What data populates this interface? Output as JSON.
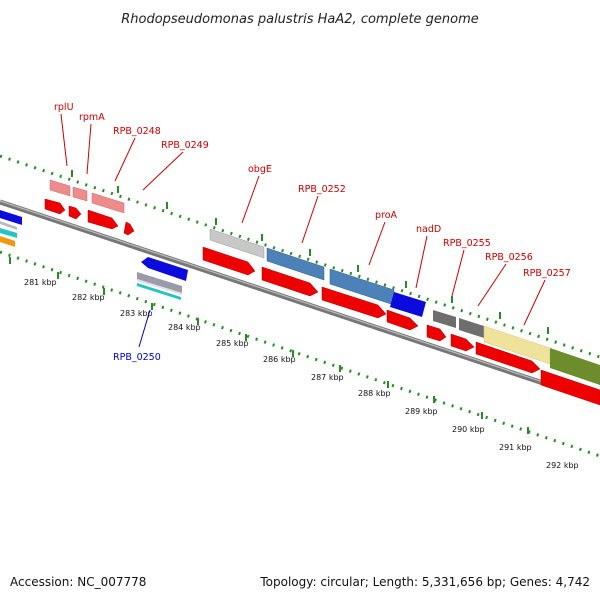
{
  "title": "Rhodopseudomonas palustris HaA2, complete genome",
  "footer": {
    "accession": "Accession: NC_007778",
    "summary": "Topology: circular; Length: 5,331,656 bp; Genes: 4,742"
  },
  "colors": {
    "background": "#ffffff",
    "backbone": "#888888",
    "ruler_ticks": "#2a8a2a",
    "label_red": "#cc0000",
    "label_blue": "#0000cc",
    "cds_red": "#ee0000",
    "blue_feature": "#0b0bdd",
    "steel_blue": "#4d82b8",
    "light_gray": "#c8c8c8",
    "dark_gray": "#6e6e6e",
    "pink": "#ee8c8c",
    "pale_yellow": "#efe29a",
    "olive": "#6d8c2c",
    "cyan": "#22c4c4",
    "orange": "#ee9a10"
  },
  "ruler": {
    "tick_labels": [
      "281 kbp",
      "282 kbp",
      "283 kbp",
      "284 kbp",
      "285 kbp",
      "286 kbp",
      "287 kbp",
      "288 kbp",
      "289 kbp",
      "290 kbp",
      "291 kbp",
      "292 kbp"
    ]
  },
  "gene_labels": [
    {
      "name": "rplU",
      "color": "#cc0000"
    },
    {
      "name": "rpmA",
      "color": "#cc0000"
    },
    {
      "name": "RPB_0248",
      "color": "#cc0000"
    },
    {
      "name": "RPB_0249",
      "color": "#cc0000"
    },
    {
      "name": "obgE",
      "color": "#cc0000"
    },
    {
      "name": "RPB_0252",
      "color": "#cc0000"
    },
    {
      "name": "proA",
      "color": "#cc0000"
    },
    {
      "name": "nadD",
      "color": "#cc0000"
    },
    {
      "name": "RPB_0255",
      "color": "#cc0000"
    },
    {
      "name": "RPB_0256",
      "color": "#cc0000"
    },
    {
      "name": "RPB_0257",
      "color": "#cc0000"
    },
    {
      "name": "RPB_0250",
      "color": "#0000cc"
    }
  ]
}
